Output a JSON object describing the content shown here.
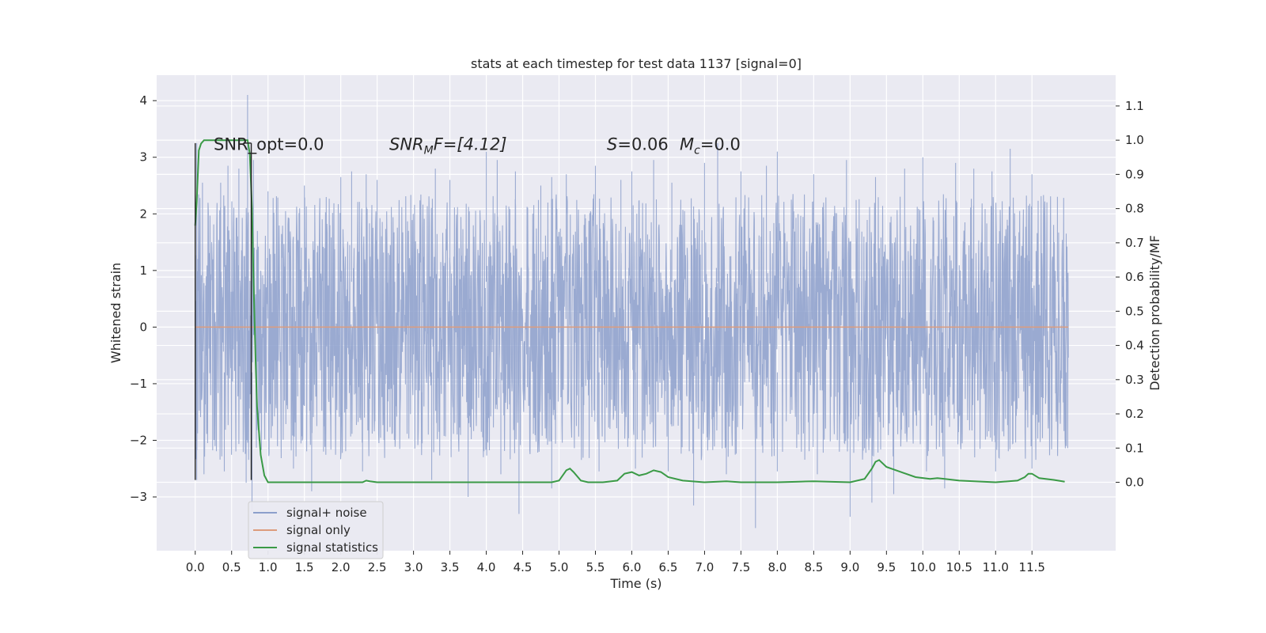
{
  "chart_data": {
    "type": "line",
    "title": "stats at each timestep for test data 1137 [signal=0]",
    "xlabel": "Time (s)",
    "ylabel": "Whitened strain",
    "ylabel_right": "Detection probability/MF",
    "xlim": [
      -0.53,
      12.65
    ],
    "ylim": [
      -3.95,
      4.45
    ],
    "ylim_right": [
      -0.2,
      1.19
    ],
    "x_ticks": [
      "0.0",
      "0.5",
      "1.0",
      "1.5",
      "2.0",
      "2.5",
      "3.0",
      "3.5",
      "4.0",
      "4.5",
      "5.0",
      "5.5",
      "6.0",
      "6.5",
      "7.0",
      "7.5",
      "8.0",
      "8.5",
      "9.0",
      "9.5",
      "10.0",
      "10.5",
      "11.0",
      "11.5"
    ],
    "y_ticks": [
      "4",
      "3",
      "2",
      "1",
      "0",
      "−1",
      "−2",
      "−3"
    ],
    "y_ticks_right": [
      "1.1",
      "1.0",
      "0.9",
      "0.8",
      "0.7",
      "0.6",
      "0.5",
      "0.4",
      "0.3",
      "0.2",
      "0.1",
      "0.0"
    ],
    "grid": true,
    "legend_position": "lower-left",
    "annotations": {
      "snr_opt": "SNR_opt=0.0",
      "snr_mf_main": "SNR",
      "snr_mf_sub": "M",
      "snr_mf_rest": "F=[4.12]",
      "s_var": "S",
      "s_val": "=0.06",
      "mc_main": "M",
      "mc_sub": "c",
      "mc_val": "=0.0"
    },
    "series": [
      {
        "name": "signal+ noise",
        "color": "#8c9fcb",
        "axis": "left",
        "x_range": [
          0,
          12.0
        ],
        "envelope": {
          "core_band": [
            -1.5,
            1.5
          ],
          "spikes_high": [
            [
              0.02,
              3.25
            ],
            [
              0.1,
              2.55
            ],
            [
              0.35,
              2.55
            ],
            [
              0.45,
              2.85
            ],
            [
              0.6,
              2.8
            ],
            [
              0.72,
              4.1
            ],
            [
              0.8,
              2.95
            ],
            [
              1.0,
              2.4
            ],
            [
              1.5,
              2.5
            ],
            [
              2.0,
              2.65
            ],
            [
              2.15,
              2.75
            ],
            [
              2.35,
              2.7
            ],
            [
              2.5,
              2.6
            ],
            [
              3.3,
              2.8
            ],
            [
              3.5,
              2.6
            ],
            [
              4.0,
              3.1
            ],
            [
              4.15,
              2.95
            ],
            [
              4.4,
              2.75
            ],
            [
              4.75,
              2.5
            ],
            [
              4.9,
              2.65
            ],
            [
              5.1,
              2.7
            ],
            [
              5.5,
              2.85
            ],
            [
              5.85,
              2.6
            ],
            [
              6.0,
              2.75
            ],
            [
              6.3,
              2.95
            ],
            [
              6.55,
              2.55
            ],
            [
              7.0,
              2.9
            ],
            [
              7.18,
              3.25
            ],
            [
              7.5,
              2.75
            ],
            [
              7.85,
              2.85
            ],
            [
              8.0,
              3.1
            ],
            [
              8.5,
              2.7
            ],
            [
              8.95,
              2.95
            ],
            [
              9.35,
              2.65
            ],
            [
              9.75,
              2.8
            ],
            [
              10.0,
              3.0
            ],
            [
              10.45,
              2.9
            ],
            [
              10.7,
              2.8
            ],
            [
              10.95,
              2.75
            ],
            [
              11.2,
              3.15
            ],
            [
              11.5,
              2.7
            ],
            [
              11.85,
              2.3
            ],
            [
              11.97,
              1.65
            ]
          ],
          "spikes_low": [
            [
              0.02,
              -2.7
            ],
            [
              0.12,
              -2.6
            ],
            [
              0.4,
              -2.55
            ],
            [
              0.7,
              -2.75
            ],
            [
              0.78,
              -3.25
            ],
            [
              1.35,
              -2.5
            ],
            [
              1.6,
              -2.9
            ],
            [
              2.3,
              -2.55
            ],
            [
              3.25,
              -2.7
            ],
            [
              3.75,
              -3.0
            ],
            [
              4.2,
              -2.6
            ],
            [
              4.45,
              -3.3
            ],
            [
              4.9,
              -2.85
            ],
            [
              5.55,
              -2.55
            ],
            [
              6.05,
              -2.5
            ],
            [
              6.5,
              -2.55
            ],
            [
              6.85,
              -3.15
            ],
            [
              7.3,
              -2.6
            ],
            [
              7.7,
              -3.55
            ],
            [
              8.0,
              -2.55
            ],
            [
              8.55,
              -2.6
            ],
            [
              9.0,
              -3.35
            ],
            [
              9.3,
              -3.1
            ],
            [
              9.6,
              -2.95
            ],
            [
              10.05,
              -2.55
            ],
            [
              10.3,
              -2.85
            ],
            [
              11.0,
              -2.55
            ],
            [
              11.5,
              -2.5
            ],
            [
              11.97,
              -2.1
            ]
          ]
        }
      },
      {
        "name": "signal only",
        "color": "#dd9c7c",
        "axis": "left",
        "x": [
          0,
          12.0
        ],
        "y": [
          0,
          0
        ]
      },
      {
        "name": "signal statistics",
        "color": "#3a9a46",
        "axis": "right",
        "x": [
          0.0,
          0.02,
          0.05,
          0.08,
          0.12,
          0.18,
          0.3,
          0.5,
          0.68,
          0.72,
          0.75,
          0.78,
          0.8,
          0.83,
          0.85,
          0.9,
          0.95,
          1.0,
          1.5,
          2.0,
          2.3,
          2.35,
          2.4,
          2.5,
          3.0,
          3.5,
          4.0,
          4.5,
          4.9,
          5.0,
          5.05,
          5.1,
          5.15,
          5.2,
          5.3,
          5.4,
          5.6,
          5.8,
          5.9,
          6.0,
          6.1,
          6.2,
          6.3,
          6.4,
          6.5,
          6.7,
          7.0,
          7.3,
          7.5,
          8.0,
          8.3,
          8.5,
          9.0,
          9.2,
          9.3,
          9.35,
          9.4,
          9.5,
          9.7,
          9.9,
          10.1,
          10.2,
          10.3,
          10.5,
          11.0,
          11.3,
          11.4,
          11.45,
          11.5,
          11.6,
          11.8,
          11.95
        ],
        "y": [
          0.75,
          0.82,
          0.97,
          0.99,
          1.0,
          1.0,
          1.0,
          1.0,
          1.0,
          1.0,
          0.96,
          0.8,
          0.6,
          0.35,
          0.22,
          0.08,
          0.02,
          0.0,
          0.0,
          0.0,
          0.0,
          0.005,
          0.003,
          0.0,
          0.0,
          0.0,
          0.0,
          0.0,
          0.0,
          0.005,
          0.02,
          0.035,
          0.04,
          0.03,
          0.005,
          0.0,
          0.0,
          0.005,
          0.025,
          0.03,
          0.02,
          0.025,
          0.035,
          0.03,
          0.015,
          0.005,
          0.0,
          0.003,
          0.0,
          0.0,
          0.002,
          0.003,
          0.0,
          0.01,
          0.04,
          0.06,
          0.065,
          0.045,
          0.03,
          0.015,
          0.01,
          0.012,
          0.01,
          0.005,
          0.0,
          0.005,
          0.015,
          0.025,
          0.025,
          0.012,
          0.007,
          0.002
        ]
      }
    ],
    "markers": {
      "vlines_x": [
        0.0,
        0.77
      ],
      "vline_span_y": [
        -2.7,
        3.25
      ]
    }
  }
}
